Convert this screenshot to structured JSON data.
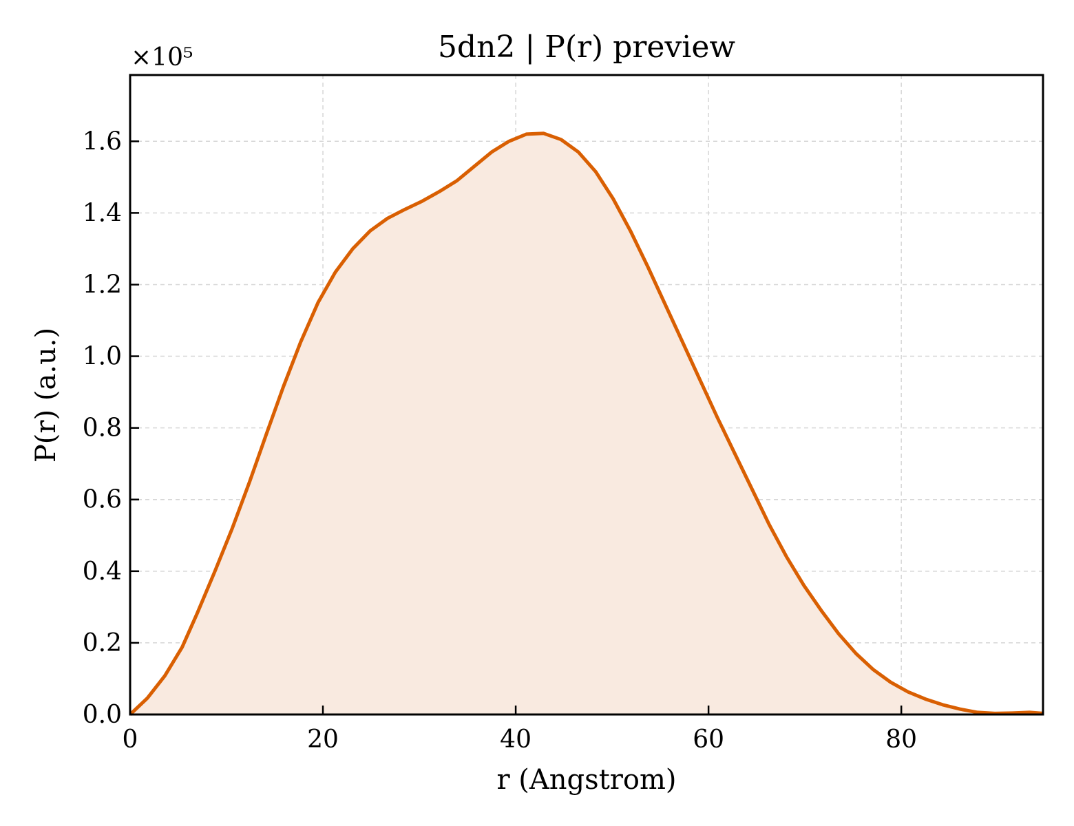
{
  "chart_data": {
    "type": "area",
    "title": "5dn2 | P(r) preview",
    "xlabel": "r (Angstrom)",
    "ylabel": "P(r) (a.u.)",
    "y_multiplier_label": "×10⁵",
    "xlim": [
      0,
      94.7
    ],
    "ylim": [
      0,
      1.785
    ],
    "x_ticks": [
      0,
      20,
      40,
      60,
      80
    ],
    "x_tick_labels": [
      "0",
      "20",
      "40",
      "60",
      "80"
    ],
    "y_ticks": [
      0.0,
      0.2,
      0.4,
      0.6,
      0.8,
      1.0,
      1.2,
      1.4,
      1.6
    ],
    "y_tick_labels": [
      "0.0",
      "0.2",
      "0.4",
      "0.6",
      "0.8",
      "1.0",
      "1.2",
      "1.4",
      "1.6"
    ],
    "grid": true,
    "line_color": "#d95f02",
    "fill_color": "#f9eae0",
    "series": [
      {
        "x": [
          0,
          1.8,
          3.6,
          5.4,
          7.0,
          8.8,
          10.6,
          12.4,
          14.1,
          15.9,
          17.7,
          19.5,
          21.3,
          23.1,
          24.9,
          26.7,
          28.5,
          30.3,
          32.1,
          33.9,
          35.7,
          37.5,
          39.3,
          41.1,
          42.9,
          44.7,
          46.5,
          48.3,
          50.1,
          51.9,
          53.7,
          55.5,
          57.3,
          59.1,
          60.9,
          62.7,
          64.5,
          66.3,
          68.1,
          69.9,
          71.7,
          73.5,
          75.3,
          77.1,
          78.9,
          80.7,
          82.5,
          84.3,
          86.1,
          87.9,
          89.7,
          91.5,
          93.3,
          94.7
        ],
        "y": [
          0.0,
          0.046,
          0.108,
          0.188,
          0.285,
          0.4,
          0.52,
          0.65,
          0.78,
          0.915,
          1.04,
          1.15,
          1.235,
          1.3,
          1.35,
          1.385,
          1.41,
          1.433,
          1.46,
          1.49,
          1.53,
          1.57,
          1.6,
          1.62,
          1.622,
          1.605,
          1.57,
          1.515,
          1.44,
          1.35,
          1.25,
          1.145,
          1.04,
          0.935,
          0.83,
          0.73,
          0.63,
          0.53,
          0.44,
          0.36,
          0.29,
          0.225,
          0.17,
          0.125,
          0.09,
          0.063,
          0.043,
          0.027,
          0.015,
          0.006,
          0.003,
          0.004,
          0.006,
          0.003
        ]
      }
    ]
  }
}
